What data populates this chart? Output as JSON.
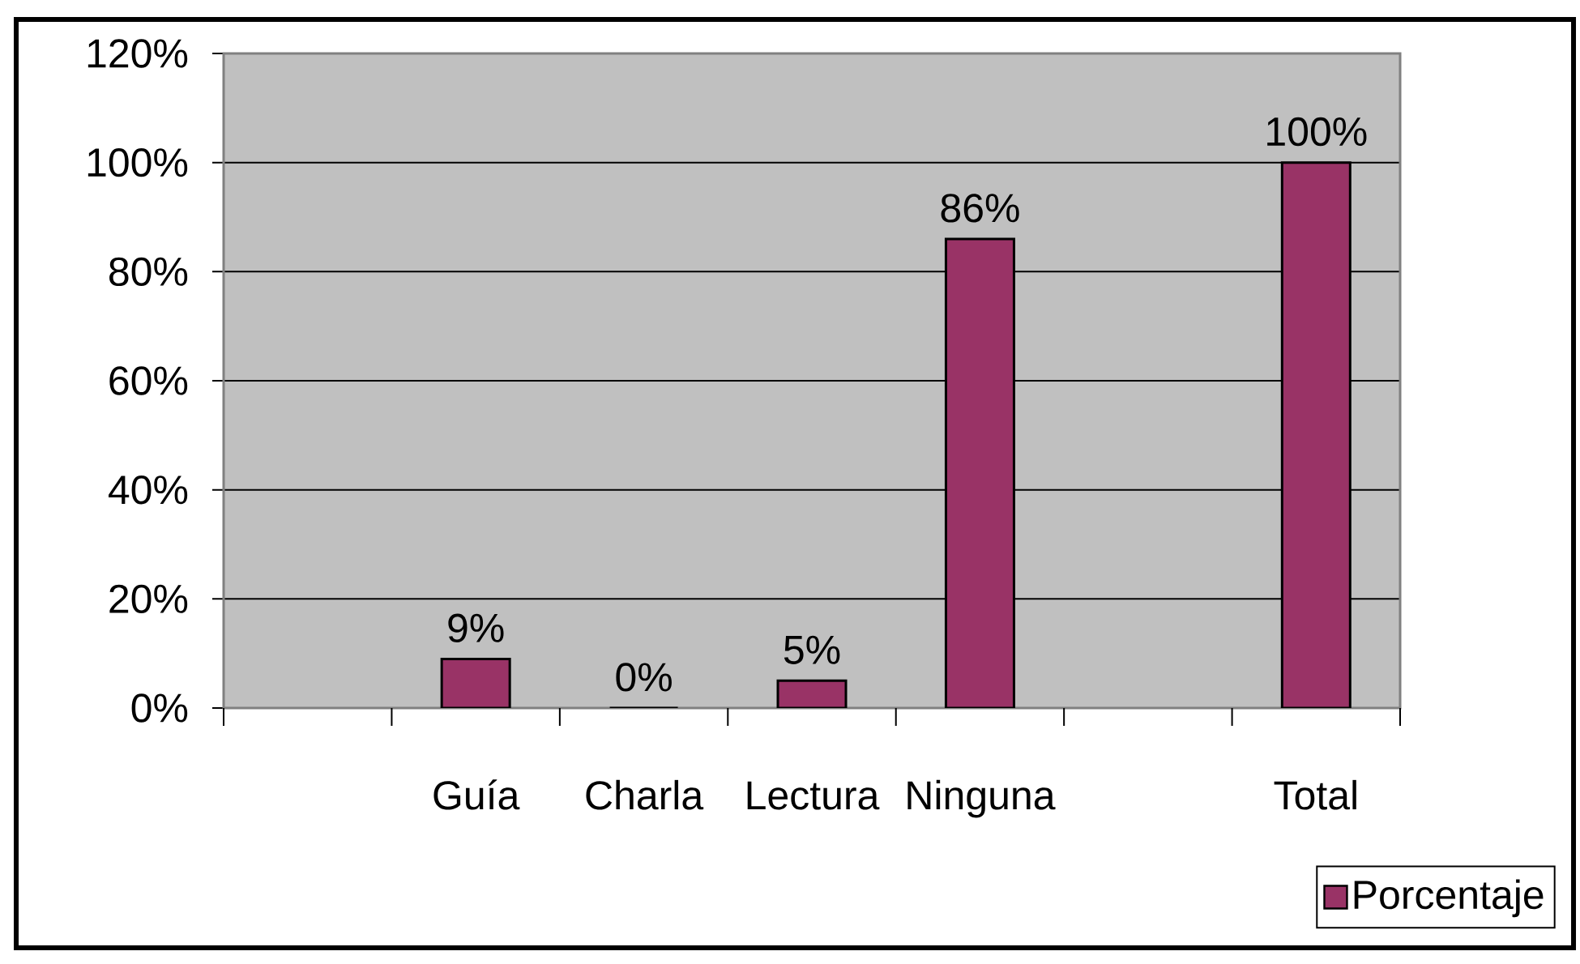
{
  "chart_data": {
    "type": "bar",
    "categories": [
      null,
      "Guía",
      "Charla",
      "Lectura",
      "Ninguna",
      null,
      "Total"
    ],
    "series": [
      {
        "name": "Porcentaje",
        "color": "#993366",
        "values": [
          null,
          9,
          0,
          5,
          86,
          null,
          100
        ],
        "value_labels": [
          null,
          "9%",
          "0%",
          "5%",
          "86%",
          null,
          "100%"
        ]
      }
    ],
    "ylim": [
      0,
      120
    ],
    "yticks": [
      {
        "value": 0,
        "label": "0%"
      },
      {
        "value": 20,
        "label": "20%"
      },
      {
        "value": 40,
        "label": "40%"
      },
      {
        "value": 60,
        "label": "60%"
      },
      {
        "value": 80,
        "label": "80%"
      },
      {
        "value": 100,
        "label": "100%"
      },
      {
        "value": 120,
        "label": "120%"
      }
    ],
    "grid": "y",
    "legend": "bottom right"
  }
}
